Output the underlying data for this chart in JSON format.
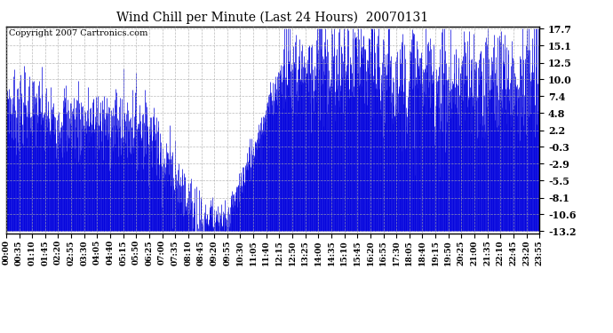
{
  "title": "Wind Chill per Minute (Last 24 Hours)  20070131",
  "copyright": "Copyright 2007 Cartronics.com",
  "line_color": "#0000dd",
  "bg_color": "#ffffff",
  "plot_bg_color": "#ffffff",
  "yticks": [
    17.7,
    15.1,
    12.5,
    10.0,
    7.4,
    4.8,
    2.2,
    -0.3,
    -2.9,
    -5.5,
    -8.1,
    -10.6,
    -13.2
  ],
  "ymin": -13.2,
  "ymax": 17.7,
  "xtick_labels": [
    "00:00",
    "00:35",
    "01:10",
    "01:45",
    "02:20",
    "02:55",
    "03:30",
    "04:05",
    "04:40",
    "05:15",
    "05:50",
    "06:25",
    "07:00",
    "07:35",
    "08:10",
    "08:45",
    "09:20",
    "09:55",
    "10:30",
    "11:05",
    "11:40",
    "12:15",
    "12:50",
    "13:25",
    "14:00",
    "14:35",
    "15:10",
    "15:45",
    "16:20",
    "16:55",
    "17:30",
    "18:05",
    "18:40",
    "19:15",
    "19:50",
    "20:25",
    "21:00",
    "21:35",
    "22:10",
    "22:45",
    "23:20",
    "23:55"
  ],
  "n_minutes": 1440
}
